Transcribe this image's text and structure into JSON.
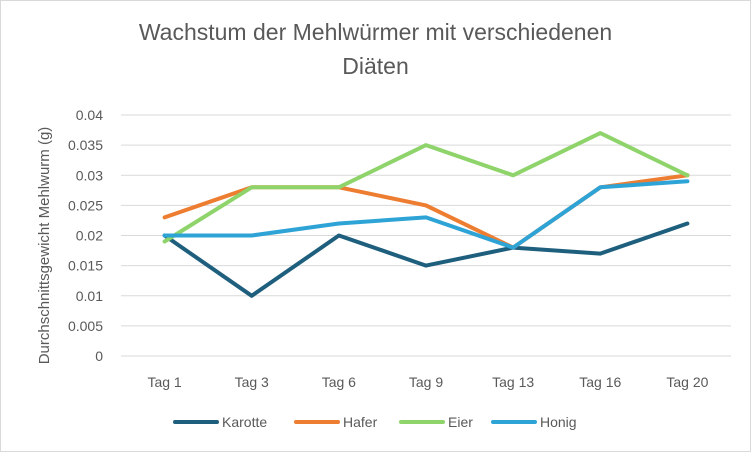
{
  "chart_data": {
    "type": "line",
    "title_lines": [
      "Wachstum der Mehlwürmer mit verschiedenen",
      "Diäten"
    ],
    "xlabel": "",
    "ylabel": "Durchschnittsgewicht Mehlwurm (g)",
    "categories": [
      "Tag 1",
      "Tag 3",
      "Tag 6",
      "Tag 9",
      "Tag 13",
      "Tag 16",
      "Tag 20"
    ],
    "ylim": [
      0,
      0.04
    ],
    "yticks": [
      "0",
      "0.005",
      "0.01",
      "0.015",
      "0.02",
      "0.025",
      "0.03",
      "0.035",
      "0.04"
    ],
    "grid": true,
    "legend_position": "bottom",
    "series": [
      {
        "name": "Karotte",
        "color": "#1f5f7e",
        "values": [
          0.02,
          0.01,
          0.02,
          0.015,
          0.018,
          0.017,
          0.022
        ]
      },
      {
        "name": "Hafer",
        "color": "#ed7d31",
        "values": [
          0.023,
          0.028,
          0.028,
          0.025,
          0.018,
          0.028,
          0.03
        ]
      },
      {
        "name": "Eier",
        "color": "#8ed46b",
        "values": [
          0.019,
          0.028,
          0.028,
          0.035,
          0.03,
          0.037,
          0.03
        ]
      },
      {
        "name": "Honig",
        "color": "#2ea3d6",
        "values": [
          0.02,
          0.02,
          0.022,
          0.023,
          0.018,
          0.028,
          0.029
        ]
      }
    ]
  }
}
